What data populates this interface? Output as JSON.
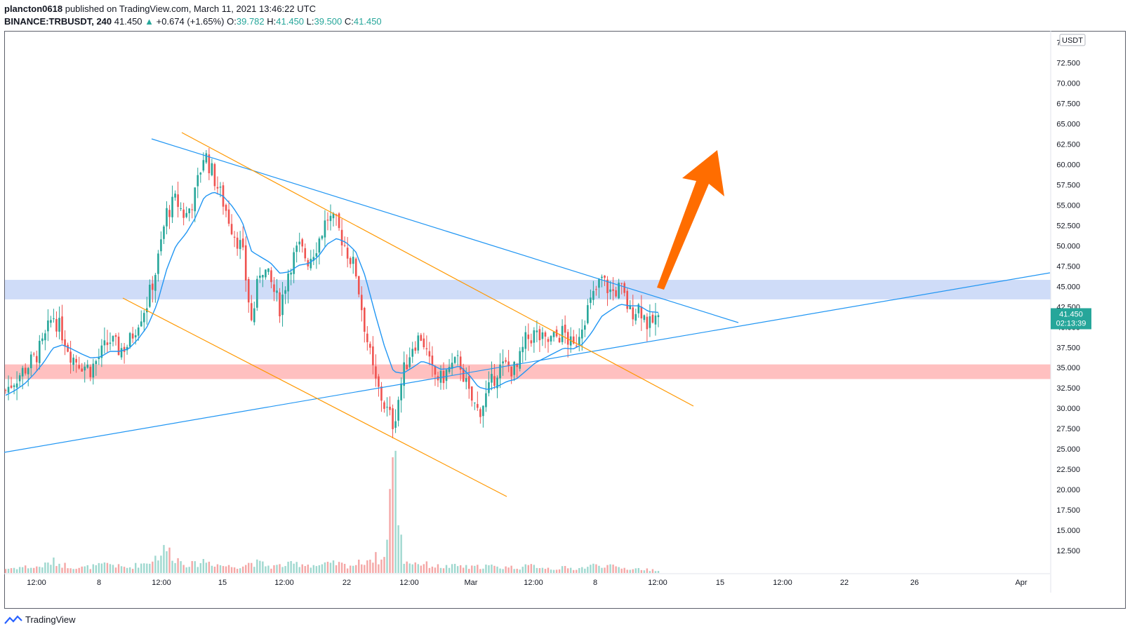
{
  "header": {
    "publisher": "plancton0618",
    "published_text": "published on TradingView.com, March 11, 2021 13:46:22 UTC",
    "symbol": "BINANCE:TRBUSDT, 240",
    "last": "41.450",
    "change": "+0.674 (+1.65%)",
    "o_label": "O:",
    "o": "39.782",
    "h_label": "H:",
    "h": "41.450",
    "l_label": "L:",
    "l": "39.500",
    "c_label": "C:",
    "c": "41.450"
  },
  "footer": {
    "brand": "TradingView"
  },
  "colors": {
    "up": "#26a69a",
    "down": "#ef5350",
    "ema": "#2196f3",
    "trend": "#2196f3",
    "channel": "#ff9800",
    "resistance_zone": "#cfdcf8",
    "support_zone": "#ffc0c0",
    "arrow": "#ff6d00"
  },
  "chart_data": {
    "type": "candlestick",
    "currency": "USDT",
    "y_range": [
      10.0,
      76.0
    ],
    "y_ticks": [
      "75.000",
      "72.500",
      "70.000",
      "67.500",
      "65.000",
      "62.500",
      "60.000",
      "57.500",
      "55.000",
      "52.500",
      "50.000",
      "47.500",
      "45.000",
      "42.500",
      "40.000",
      "37.500",
      "35.000",
      "32.500",
      "30.000",
      "27.500",
      "25.000",
      "22.500",
      "20.000",
      "17.500",
      "15.000",
      "12.500"
    ],
    "x_ticks": [
      "12:00",
      "8",
      "12:00",
      "15",
      "12:00",
      "22",
      "12:00",
      "Mar",
      "12:00",
      "8",
      "12:00",
      "15",
      "12:00",
      "22",
      "26",
      "Apr"
    ],
    "last_price_label": "41.450",
    "countdown_label": "02:13:39",
    "zones": [
      {
        "name": "resistance",
        "from": 43.4,
        "to": 45.8
      },
      {
        "name": "support",
        "from": 33.6,
        "to": 35.4
      }
    ],
    "price_path": [
      32.2,
      33.6,
      34.8,
      36.1,
      38.0,
      41.5,
      39.2,
      36.4,
      35.5,
      34.8,
      36.5,
      38.4,
      37.2,
      37.9,
      40.8,
      43.1,
      47.5,
      54.0,
      55.6,
      53.5,
      56.2,
      61.5,
      58.5,
      55.4,
      52.0,
      49.5,
      40.5,
      47.8,
      45.5,
      42.4,
      47.5,
      49.8,
      48.2,
      50.4,
      53.5,
      52.5,
      49.6,
      47.0,
      39.8,
      33.5,
      30.5,
      28.0,
      34.2,
      37.8,
      39.0,
      34.5,
      33.5,
      35.0,
      35.8,
      31.5,
      29.5,
      32.0,
      34.8,
      35.2,
      34.6,
      38.4,
      39.2,
      38.0,
      38.6,
      39.4,
      37.2,
      40.8,
      43.4,
      45.9,
      44.2,
      44.8,
      41.8,
      42.6,
      40.0,
      41.45
    ],
    "ema_path": [
      31.6,
      32.2,
      33.0,
      34.2,
      35.6,
      37.4,
      37.8,
      37.3,
      36.7,
      36.2,
      36.3,
      37.0,
      37.0,
      37.3,
      38.5,
      40.1,
      42.8,
      47.0,
      50.0,
      51.4,
      53.3,
      56.0,
      56.6,
      56.1,
      54.8,
      53.0,
      49.3,
      48.6,
      47.9,
      46.6,
      46.8,
      47.6,
      47.8,
      48.6,
      50.2,
      50.9,
      50.4,
      49.3,
      46.3,
      41.9,
      37.8,
      34.5,
      34.3,
      35.0,
      35.8,
      35.4,
      34.8,
      34.9,
      35.2,
      34.1,
      32.6,
      32.3,
      32.7,
      33.3,
      33.6,
      34.6,
      35.6,
      36.2,
      36.8,
      37.4,
      37.3,
      37.9,
      39.4,
      41.3,
      42.1,
      42.8,
      42.6,
      42.6,
      41.9,
      41.8
    ],
    "volume_path": [
      0.4,
      0.5,
      0.6,
      0.5,
      0.7,
      1.1,
      0.8,
      0.6,
      0.5,
      0.6,
      0.7,
      0.9,
      0.6,
      0.5,
      0.8,
      1.0,
      1.6,
      2.3,
      1.4,
      0.9,
      0.8,
      1.2,
      0.9,
      0.7,
      0.6,
      0.7,
      1.0,
      0.9,
      0.6,
      0.7,
      0.8,
      0.9,
      0.8,
      0.7,
      0.8,
      0.9,
      0.7,
      0.8,
      1.2,
      1.5,
      1.1,
      11.5,
      1.2,
      1.0,
      0.9,
      0.7,
      0.6,
      0.6,
      0.7,
      0.5,
      0.6,
      0.7,
      0.5,
      0.6,
      0.5,
      0.6,
      0.7,
      0.5,
      0.4,
      0.5,
      0.4,
      0.5,
      0.7,
      0.8,
      0.6,
      0.5,
      0.4,
      0.4,
      0.3,
      0.3
    ]
  }
}
